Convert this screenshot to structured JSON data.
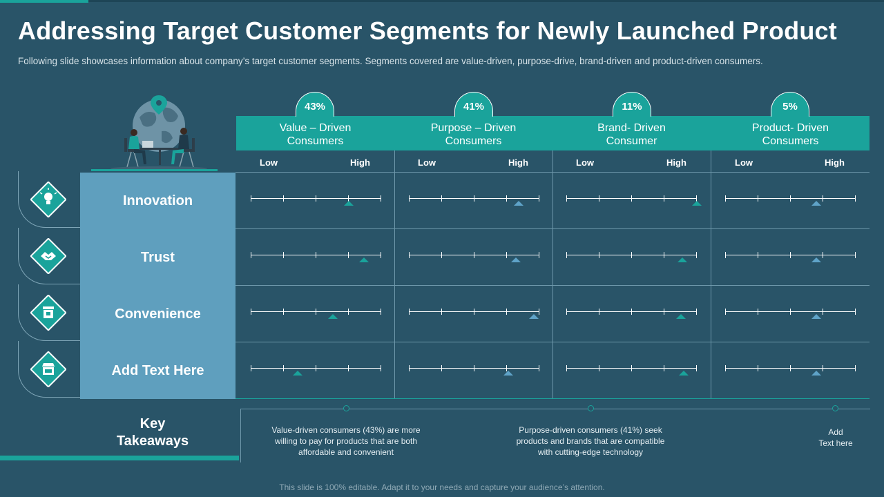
{
  "slide": {
    "title": "Addressing Target Customer Segments for Newly Launched Product",
    "subtitle": "Following slide showcases information about company’s target customer segments. Segments covered are value-driven, purpose-drive, brand-driven and product-driven consumers.",
    "footer": "This slide is 100% editable. Adapt it to your needs and capture your audience’s attention."
  },
  "colors": {
    "background": "#295468",
    "accent": "#1aa39b",
    "panel": "#5f9fbe",
    "marker_alt": "#5fa3c8"
  },
  "scale": {
    "low_label": "Low",
    "high_label": "High"
  },
  "segments": [
    {
      "percent": "43%",
      "title_line1": "Value – Driven",
      "title_line2": "Consumers"
    },
    {
      "percent": "41%",
      "title_line1": "Purpose – Driven",
      "title_line2": "Consumers"
    },
    {
      "percent": "11%",
      "title_line1": "Brand- Driven",
      "title_line2": "Consumer"
    },
    {
      "percent": "5%",
      "title_line1": "Product- Driven",
      "title_line2": "Consumers"
    }
  ],
  "rows": [
    {
      "label": "Innovation",
      "icon": "lightbulb-icon",
      "levels": [
        0.75,
        0.84,
        1.0,
        0.7
      ]
    },
    {
      "label": "Trust",
      "icon": "handshake-icon",
      "levels": [
        0.87,
        0.82,
        0.89,
        0.7
      ]
    },
    {
      "label": "Convenience",
      "icon": "shop-icon",
      "levels": [
        0.63,
        0.96,
        0.88,
        0.7
      ]
    },
    {
      "label": "Add Text Here",
      "icon": "store-icon",
      "levels": [
        0.36,
        0.76,
        0.9,
        0.7
      ]
    }
  ],
  "key_takeaways": {
    "title_line1": "Key",
    "title_line2": "Takeaways",
    "items": [
      {
        "line1": "Value-driven  consumers (43%) are more",
        "line2": "willing to pay for products that are both",
        "line3": "affordable  and convenient"
      },
      {
        "line1": "Purpose-driven  consumers (41%) seek",
        "line2": "products and brands that are compatible",
        "line3": "with cutting-edge  technology"
      },
      {
        "line1": "Add",
        "line2": "Text here",
        "line3": ""
      }
    ]
  }
}
